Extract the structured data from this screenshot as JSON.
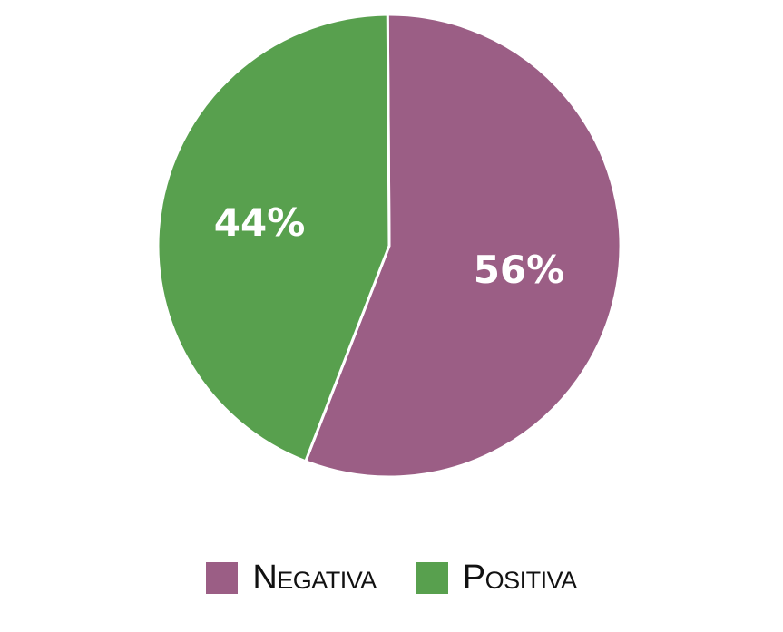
{
  "chart_data": {
    "type": "pie",
    "categories": [
      "Negativa",
      "Positiva"
    ],
    "values": [
      56,
      44
    ],
    "labels": [
      "56%",
      "44%"
    ],
    "colors": [
      "#9b5e85",
      "#58a04e"
    ],
    "legend_position": "bottom",
    "title": ""
  }
}
